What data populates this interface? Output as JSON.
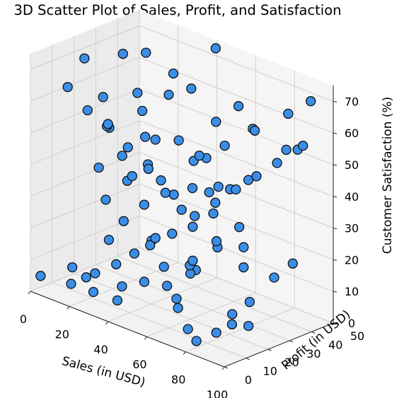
{
  "chart_data": {
    "type": "scatter3d",
    "title": "3D Scatter Plot of Sales, Profit, and Satisfaction",
    "xlabel": "Sales (in USD)",
    "ylabel": "Profit (in USD)",
    "zlabel": "Customer Satisfaction (%)",
    "xlim": [
      0,
      100
    ],
    "ylim": [
      0,
      50
    ],
    "zlim": [
      0,
      75
    ],
    "xticks": [
      "0",
      "20",
      "40",
      "60",
      "80",
      "100"
    ],
    "yticks": [
      "0",
      "10",
      "20",
      "30",
      "40",
      "50"
    ],
    "zticks": [
      "0",
      "10",
      "20",
      "30",
      "40",
      "50",
      "60",
      "70"
    ],
    "grid": true,
    "marker_color": "#3b8ee8",
    "marker_edge_color": "#111111",
    "points": [
      [
        5,
        40,
        25
      ],
      [
        10,
        45,
        30
      ],
      [
        8,
        35,
        35
      ],
      [
        12,
        42,
        40
      ],
      [
        7,
        30,
        45
      ],
      [
        15,
        38,
        50
      ],
      [
        6,
        28,
        55
      ],
      [
        9,
        45,
        65
      ],
      [
        14,
        30,
        70
      ],
      [
        18,
        20,
        15
      ],
      [
        20,
        25,
        20
      ],
      [
        25,
        30,
        25
      ],
      [
        22,
        15,
        30
      ],
      [
        28,
        35,
        32
      ],
      [
        30,
        20,
        38
      ],
      [
        24,
        10,
        42
      ],
      [
        33,
        28,
        48
      ],
      [
        26,
        12,
        55
      ],
      [
        32,
        35,
        60
      ],
      [
        38,
        40,
        62
      ],
      [
        35,
        18,
        66
      ],
      [
        40,
        30,
        70
      ],
      [
        45,
        45,
        75
      ],
      [
        3,
        2,
        5
      ],
      [
        12,
        8,
        3
      ],
      [
        16,
        5,
        10
      ],
      [
        22,
        6,
        8
      ],
      [
        30,
        3,
        12
      ],
      [
        37,
        7,
        4
      ],
      [
        42,
        2,
        18
      ],
      [
        48,
        5,
        22
      ],
      [
        55,
        6,
        26
      ],
      [
        60,
        4,
        30
      ],
      [
        66,
        9,
        8
      ],
      [
        72,
        3,
        14
      ],
      [
        80,
        5,
        2
      ],
      [
        88,
        7,
        6
      ],
      [
        95,
        8,
        10
      ],
      [
        40,
        20,
        20
      ],
      [
        45,
        25,
        22
      ],
      [
        50,
        30,
        24
      ],
      [
        55,
        35,
        28
      ],
      [
        60,
        22,
        32
      ],
      [
        65,
        27,
        36
      ],
      [
        70,
        32,
        40
      ],
      [
        75,
        37,
        44
      ],
      [
        80,
        42,
        48
      ],
      [
        85,
        47,
        52
      ],
      [
        90,
        45,
        55
      ],
      [
        52,
        15,
        16
      ],
      [
        57,
        12,
        12
      ],
      [
        62,
        18,
        18
      ],
      [
        68,
        14,
        22
      ],
      [
        74,
        20,
        26
      ],
      [
        78,
        16,
        30
      ],
      [
        83,
        22,
        34
      ],
      [
        58,
        40,
        35
      ],
      [
        63,
        44,
        38
      ],
      [
        48,
        38,
        43
      ],
      [
        53,
        42,
        47
      ],
      [
        43,
        48,
        30
      ],
      [
        33,
        45,
        28
      ],
      [
        36,
        50,
        26
      ],
      [
        28,
        50,
        34
      ],
      [
        20,
        48,
        22
      ],
      [
        92,
        30,
        18
      ],
      [
        96,
        35,
        22
      ],
      [
        85,
        25,
        10
      ],
      [
        90,
        20,
        5
      ],
      [
        70,
        10,
        2
      ],
      [
        76,
        25,
        4
      ],
      [
        65,
        40,
        12
      ],
      [
        56,
        48,
        14
      ],
      [
        46,
        35,
        8
      ],
      [
        51,
        28,
        10
      ],
      [
        34,
        22,
        5
      ],
      [
        27,
        18,
        3
      ],
      [
        19,
        12,
        1
      ],
      [
        62,
        30,
        60
      ],
      [
        68,
        35,
        65
      ],
      [
        72,
        38,
        58
      ],
      [
        82,
        30,
        62
      ],
      [
        88,
        40,
        66
      ],
      [
        94,
        45,
        70
      ],
      [
        78,
        48,
        50
      ],
      [
        44,
        15,
        45
      ],
      [
        39,
        10,
        52
      ],
      [
        31,
        8,
        58
      ],
      [
        25,
        4,
        62
      ],
      [
        17,
        2,
        68
      ],
      [
        11,
        15,
        72
      ],
      [
        54,
        20,
        55
      ],
      [
        59,
        25,
        50
      ],
      [
        64,
        5,
        45
      ],
      [
        69,
        8,
        40
      ]
    ]
  }
}
